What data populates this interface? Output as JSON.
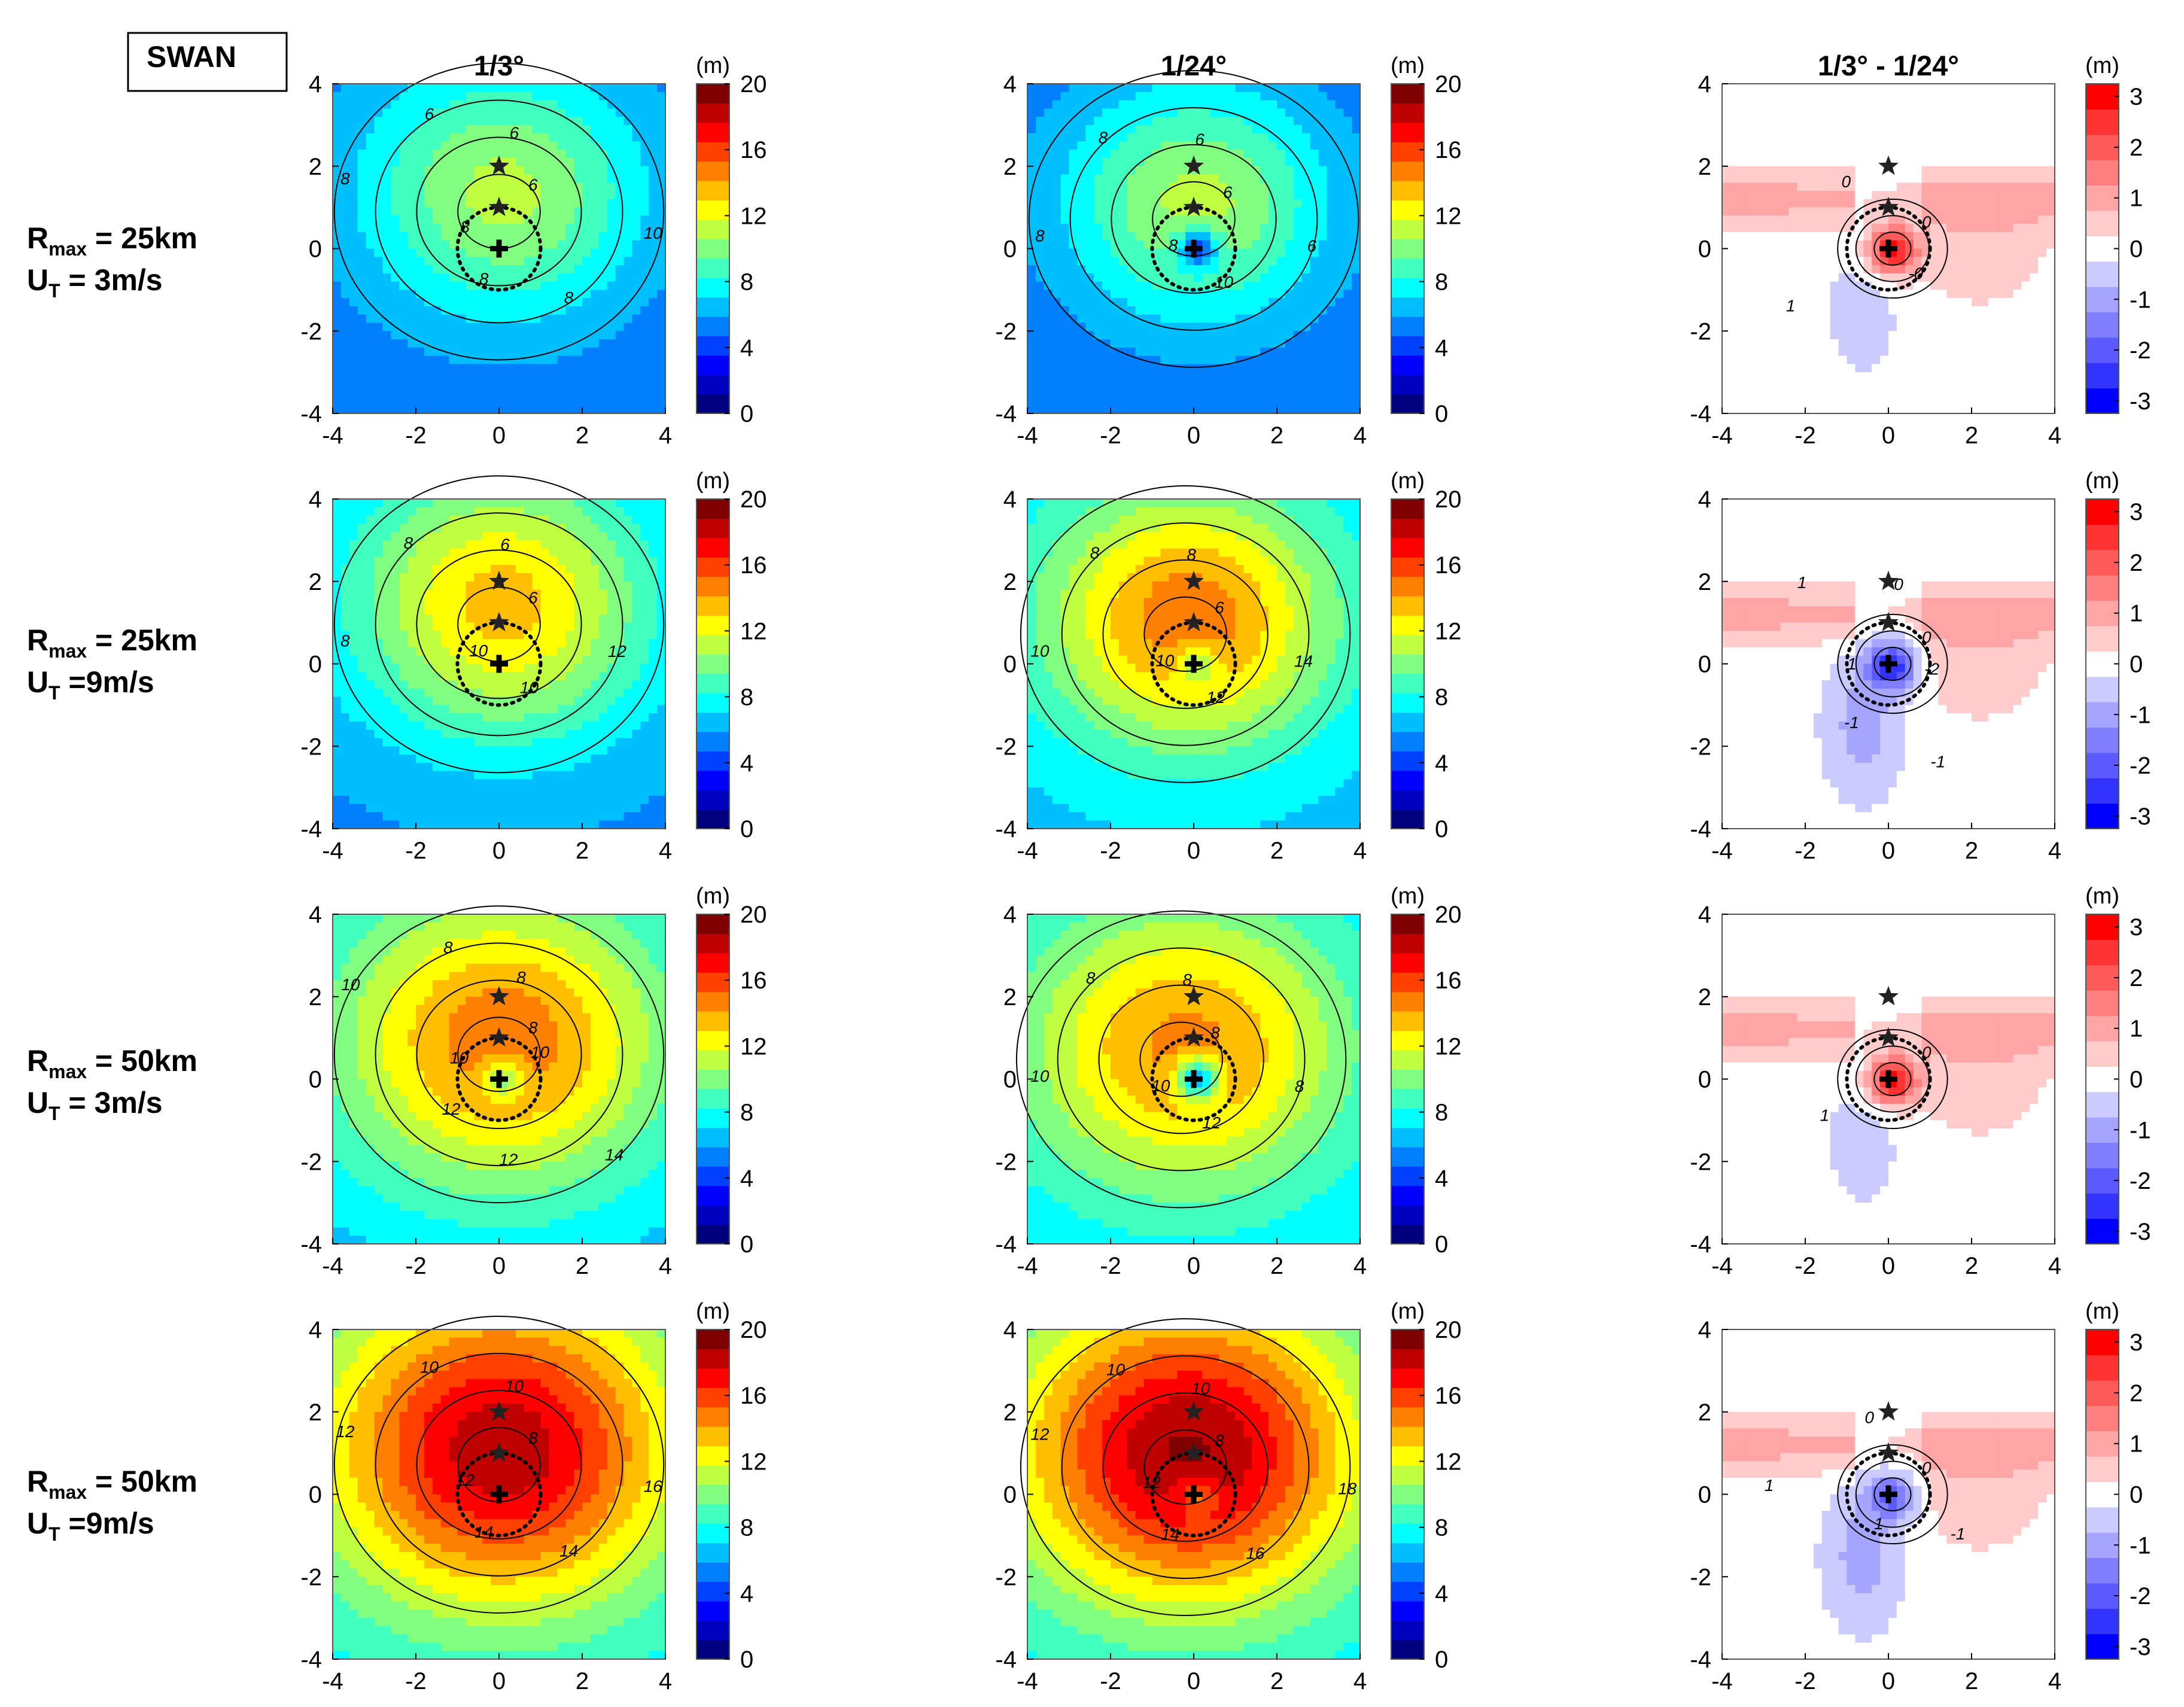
{
  "figure_label": "SWAN",
  "colorbar_unit": "(m)",
  "column_titles": [
    "1/3°",
    "1/24°",
    "1/3° - 1/24°"
  ],
  "row_labels": [
    {
      "r": "R",
      "r_sub": "max",
      "r_val": " = 25km",
      "u": "U",
      "u_sub": "T",
      "u_val": " = 3m/s"
    },
    {
      "r": "R",
      "r_sub": "max",
      "r_val": " = 25km",
      "u": "U",
      "u_sub": "T",
      "u_val": " =9m/s"
    },
    {
      "r": "R",
      "r_sub": "max",
      "r_val": " = 50km",
      "u": "U",
      "u_sub": "T",
      "u_val": " = 3m/s"
    },
    {
      "r": "R",
      "r_sub": "max",
      "r_val": " = 50km",
      "u": "U",
      "u_sub": "T",
      "u_val": " =9m/s"
    }
  ],
  "colors": {
    "jet": [
      "#00007f",
      "#0000bf",
      "#0000ff",
      "#0040ff",
      "#0080ff",
      "#00bfff",
      "#00ffff",
      "#40ffbf",
      "#80ff80",
      "#bfff40",
      "#ffff00",
      "#ffbf00",
      "#ff8000",
      "#ff4000",
      "#ff0000",
      "#bf0000",
      "#7f0000"
    ],
    "diverging": [
      "#0000ff",
      "#3333ff",
      "#5a5aff",
      "#7f7fff",
      "#a5a5ff",
      "#cbcbff",
      "#ffffff",
      "#ffcbcb",
      "#ffa5a5",
      "#ff7f7f",
      "#ff5a5a",
      "#ff3333",
      "#ff0000"
    ],
    "contour": "#000000",
    "marker": "#222222"
  },
  "chart_data": {
    "type": "heatmap",
    "xlim": [
      -4,
      4
    ],
    "ylim": [
      -4,
      4
    ],
    "xticks": [
      "-4",
      "-2",
      "0",
      "2",
      "4"
    ],
    "yticks": [
      "4",
      "2",
      "0",
      "-2",
      "-4"
    ],
    "markers": {
      "stars": [
        [
          0,
          2
        ],
        [
          0,
          1
        ]
      ],
      "cross": [
        0,
        0
      ]
    },
    "rmw_circle_radius": 1.0,
    "colorbars": {
      "wave_height": {
        "min": 0,
        "max": 20,
        "ticks": [
          "20",
          "16",
          "12",
          "8",
          "4",
          "0"
        ]
      },
      "difference": {
        "min": -3.25,
        "max": 3.25,
        "ticks": [
          "3",
          "2",
          "1",
          "0",
          "-1",
          "-2",
          "-3"
        ]
      }
    },
    "panels": [
      {
        "row": 0,
        "col": 0,
        "kind": "hs",
        "peak": 10.5,
        "peak_x": 0.0,
        "peak_y": 1.5,
        "eye_dip": 0.0,
        "spread": 2.2,
        "background": 5.0,
        "contour_labels": [
          "6",
          "6",
          "6",
          "8",
          "8",
          "8",
          "8",
          "10"
        ]
      },
      {
        "row": 0,
        "col": 1,
        "kind": "hs",
        "peak": 10.5,
        "peak_x": 0.0,
        "peak_y": 1.2,
        "eye_dip": 6.0,
        "spread": 2.0,
        "background": 5.0,
        "contour_labels": [
          "6",
          "6",
          "8",
          "8",
          "8",
          "10",
          "6"
        ]
      },
      {
        "row": 0,
        "col": 2,
        "kind": "diff",
        "center_value": 3.0,
        "contour_labels": [
          "0",
          "0",
          "1",
          "-0"
        ]
      },
      {
        "row": 1,
        "col": 0,
        "kind": "hs",
        "peak": 13.0,
        "peak_x": 0.0,
        "peak_y": 1.6,
        "eye_dip": 0.0,
        "spread": 2.4,
        "background": 5.5,
        "contour_labels": [
          "6",
          "6",
          "8",
          "8",
          "10",
          "10",
          "12"
        ]
      },
      {
        "row": 1,
        "col": 1,
        "kind": "hs",
        "peak": 14.5,
        "peak_x": -0.2,
        "peak_y": 1.2,
        "eye_dip": 3.0,
        "spread": 2.3,
        "background": 6.5,
        "contour_labels": [
          "6",
          "8",
          "8",
          "10",
          "10",
          "12",
          "14"
        ]
      },
      {
        "row": 1,
        "col": 2,
        "kind": "diff",
        "center_value": -2.5,
        "contour_labels": [
          "0",
          "0",
          "1",
          "1",
          "-1",
          "-1",
          "-2"
        ]
      },
      {
        "row": 2,
        "col": 0,
        "kind": "hs",
        "peak": 14.5,
        "peak_x": 0.0,
        "peak_y": 1.0,
        "eye_dip": 4.0,
        "spread": 2.8,
        "background": 6.0,
        "contour_labels": [
          "8",
          "8",
          "8",
          "10",
          "10",
          "12",
          "12",
          "14",
          "10"
        ]
      },
      {
        "row": 2,
        "col": 1,
        "kind": "hs",
        "peak": 14.0,
        "peak_x": -0.3,
        "peak_y": 0.8,
        "eye_dip": 8.0,
        "spread": 2.7,
        "background": 6.5,
        "contour_labels": [
          "8",
          "8",
          "8",
          "10",
          "10",
          "12",
          "8"
        ]
      },
      {
        "row": 2,
        "col": 2,
        "kind": "diff",
        "center_value": 3.0,
        "contour_labels": [
          "0",
          "1"
        ]
      },
      {
        "row": 3,
        "col": 0,
        "kind": "hs",
        "peak": 18.0,
        "peak_x": 0.0,
        "peak_y": 1.2,
        "eye_dip": 0.0,
        "spread": 2.9,
        "background": 7.0,
        "contour_labels": [
          "8",
          "10",
          "10",
          "12",
          "12",
          "14",
          "14",
          "16"
        ]
      },
      {
        "row": 3,
        "col": 1,
        "kind": "hs",
        "peak": 18.5,
        "peak_x": -0.2,
        "peak_y": 1.1,
        "eye_dip": 3.0,
        "spread": 2.8,
        "background": 7.0,
        "contour_labels": [
          "8",
          "10",
          "10",
          "12",
          "12",
          "14",
          "16",
          "18"
        ]
      },
      {
        "row": 3,
        "col": 2,
        "kind": "diff",
        "center_value": -1.8,
        "contour_labels": [
          "0",
          "0",
          "1",
          "1",
          "-1"
        ]
      }
    ]
  }
}
